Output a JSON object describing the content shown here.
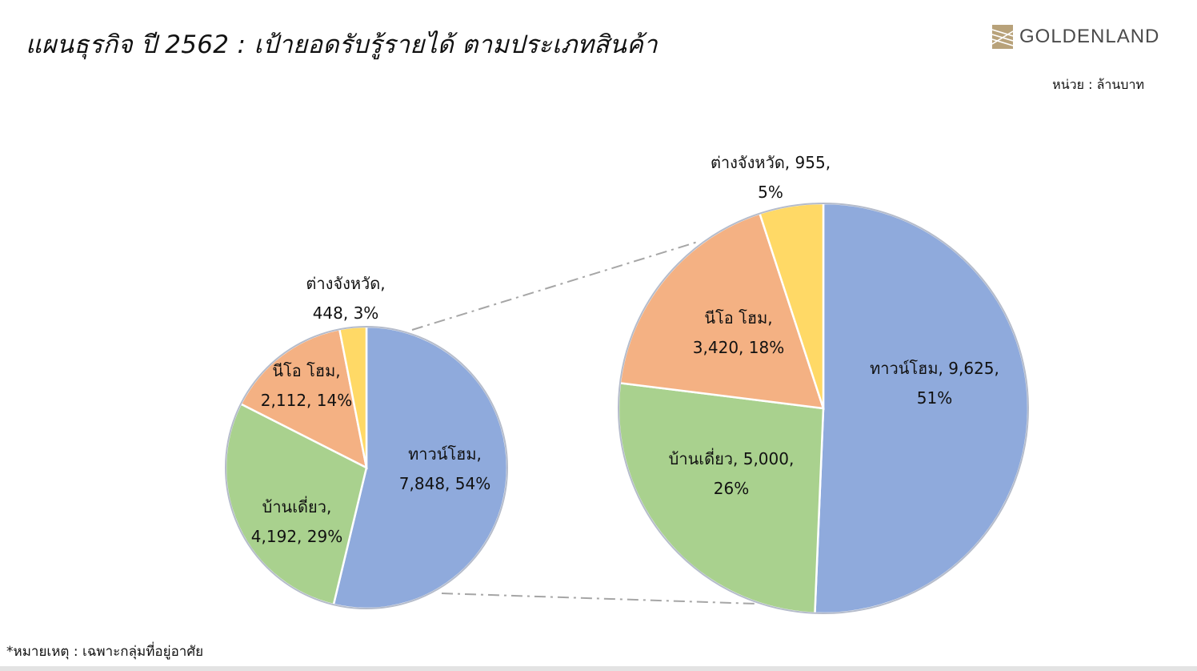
{
  "header": {
    "title": "แผนธุรกิจ ปี 2562  :  เป้ายอดรับรู้รายได้ ตามประเภทสินค้า",
    "logo_text": "GOLDENLAND",
    "unit_label": "หน่วย : ล้านบาท"
  },
  "footnote": "*หมายเหตุ : เฉพาะกลุ่มที่อยู่อาศัย",
  "colors": {
    "townhome": "#8FAADC",
    "single_house": "#A9D18E",
    "neo_home": "#F4B183",
    "upcountry": "#FFD966",
    "logo": "#B8A27A"
  },
  "chart_data": [
    {
      "type": "pie",
      "categories": [
        "ทาวน์โฮม",
        "บ้านเดี่ยว",
        "นีโอ โฮม",
        "ต่างจังหวัด"
      ],
      "values": [
        7848,
        4192,
        2112,
        448
      ],
      "percents": [
        54,
        29,
        14,
        3
      ],
      "labels": [
        [
          "ทาวน์โฮม,",
          "7,848, 54%"
        ],
        [
          "บ้านเดี่ยว,",
          "4,192, 29%"
        ],
        [
          "นีโอ โฮม,",
          "2,112, 14%"
        ],
        [
          "ต่างจังหวัด,",
          "448, 3%"
        ]
      ]
    },
    {
      "type": "pie",
      "categories": [
        "ทาวน์โฮม",
        "บ้านเดี่ยว",
        "นีโอ โฮม",
        "ต่างจังหวัด"
      ],
      "values": [
        9625,
        5000,
        3420,
        955
      ],
      "percents": [
        51,
        26,
        18,
        5
      ],
      "labels": [
        [
          "ทาวน์โฮม, 9,625,",
          "51%"
        ],
        [
          "บ้านเดี่ยว, 5,000,",
          "26%"
        ],
        [
          "นีโอ โฮม,",
          "3,420, 18%"
        ],
        [
          "ต่างจังหวัด, 955,",
          "5%"
        ]
      ]
    }
  ]
}
